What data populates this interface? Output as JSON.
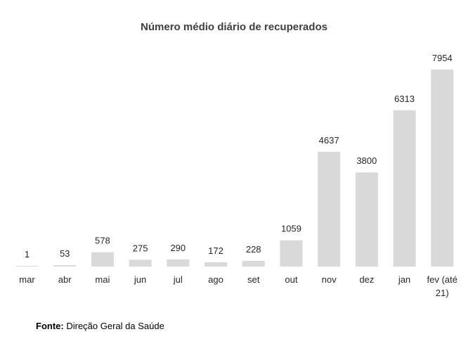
{
  "chart_data": {
    "type": "bar",
    "title": "Número médio diário de recuperados",
    "categories": [
      "mar",
      "abr",
      "mai",
      "jun",
      "jul",
      "ago",
      "set",
      "out",
      "nov",
      "dez",
      "jan",
      "fev (até 21)"
    ],
    "values": [
      1,
      53,
      578,
      275,
      290,
      172,
      228,
      1059,
      4637,
      3800,
      6313,
      7954
    ],
    "xlabel": "",
    "ylabel": "",
    "ylim": [
      0,
      7954
    ],
    "grid": false,
    "legend": "none",
    "colors": {
      "bar": "#d9d9d9",
      "text": "#262626",
      "title": "#404040"
    }
  },
  "source": {
    "label": "Fonte:",
    "text": "Direção Geral da Saúde"
  }
}
